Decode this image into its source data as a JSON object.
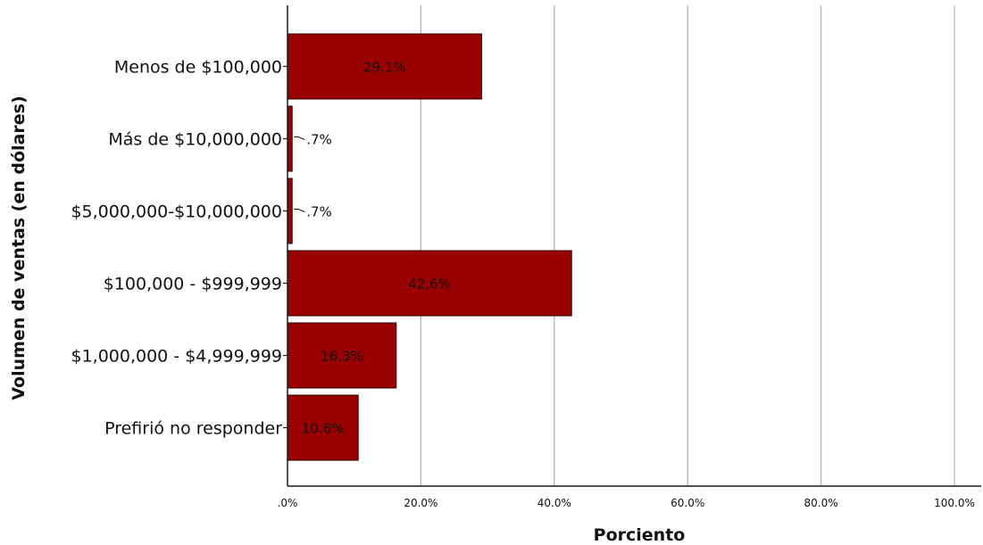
{
  "chart_data": {
    "type": "bar",
    "orientation": "horizontal",
    "categories": [
      "Menos de $100,000",
      "Más de $10,000,000",
      "$5,000,000-$10,000,000",
      "$100,000 - $999,999",
      "$1,000,000 - $4,999,999",
      "Prefirió no responder"
    ],
    "values": [
      29.1,
      0.7,
      0.7,
      42.6,
      16.3,
      10.6
    ],
    "data_labels": [
      "29.1%",
      ".7%",
      ".7%",
      "42.6%",
      "16.3%",
      "10.6%"
    ],
    "xlabel": "Porciento",
    "ylabel": "Volumen de ventas (en dólares)",
    "xlim": [
      0,
      100
    ],
    "xticks": [
      0,
      20,
      40,
      60,
      80,
      100
    ],
    "xtick_labels": [
      ".0%",
      "20.0%",
      "40.0%",
      "60.0%",
      "80.0%",
      "100.0%"
    ],
    "grid": "vertical",
    "legend": "none",
    "colors": {
      "bar": "#990000",
      "bar_edge": "#2a0000",
      "grid": "#b3b3b3",
      "axis": "#1a1a1a",
      "text": "#111111"
    }
  }
}
